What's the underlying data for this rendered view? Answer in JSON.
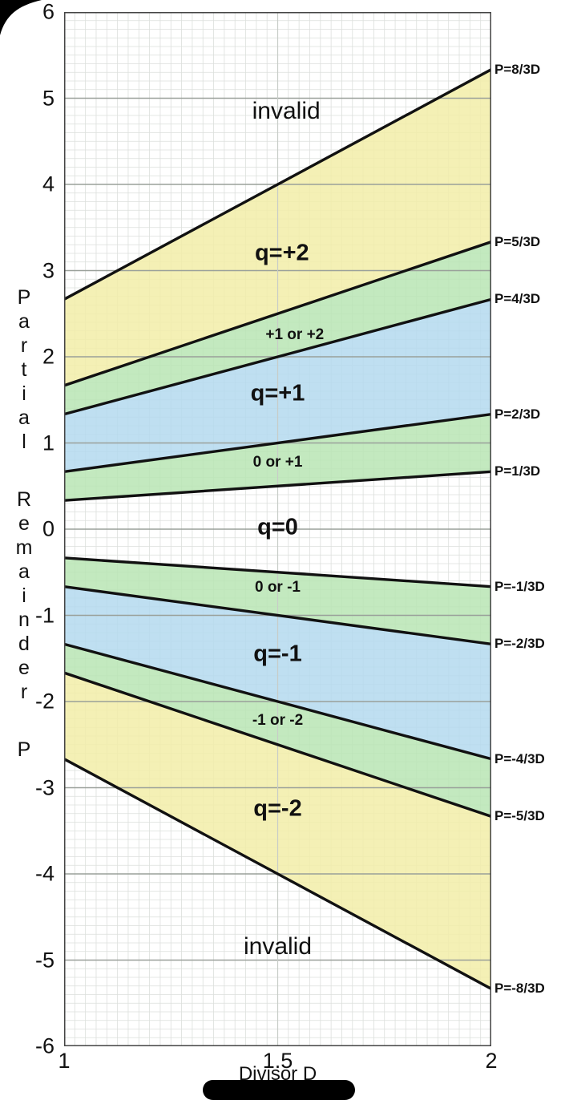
{
  "chart_data": {
    "type": "area",
    "title": "",
    "xlabel": "Divisor D",
    "ylabel": "Partial Remainder P",
    "xlim": [
      1,
      2
    ],
    "ylim": [
      -6,
      6
    ],
    "x_ticks": [
      "1",
      "1.5",
      "2"
    ],
    "y_ticks": [
      "6",
      "5",
      "4",
      "3",
      "2",
      "1",
      "0",
      "-1",
      "-2",
      "-3",
      "-4",
      "-5",
      "-6"
    ],
    "grid": "on",
    "boundary_lines": [
      {
        "label": "P=8/3D",
        "slope": 2.66667
      },
      {
        "label": "P=5/3D",
        "slope": 1.66667
      },
      {
        "label": "P=4/3D",
        "slope": 1.33333
      },
      {
        "label": "P=2/3D",
        "slope": 0.66667
      },
      {
        "label": "P=1/3D",
        "slope": 0.33333
      },
      {
        "label": "P=-1/3D",
        "slope": -0.33333
      },
      {
        "label": "P=-2/3D",
        "slope": -0.66667
      },
      {
        "label": "P=-4/3D",
        "slope": -1.33333
      },
      {
        "label": "P=-5/3D",
        "slope": -1.66667
      },
      {
        "label": "P=-8/3D",
        "slope": -2.66667
      }
    ],
    "regions": [
      {
        "label": "invalid",
        "fill": "none",
        "lower": {
          "slope": 2.66667
        },
        "upper": {
          "p": 6
        },
        "label_at": [
          1.52,
          4.85
        ],
        "style": "plain"
      },
      {
        "label": "q=+2",
        "fill": "yellow",
        "lower": {
          "slope": 1.66667
        },
        "upper": {
          "slope": 2.66667
        },
        "label_at": [
          1.51,
          3.2
        ],
        "style": "big-bold"
      },
      {
        "label": "+1 or +2",
        "fill": "green",
        "lower": {
          "slope": 1.33333
        },
        "upper": {
          "slope": 1.66667
        },
        "label_at": [
          1.54,
          2.25
        ],
        "style": "small-bold"
      },
      {
        "label": "q=+1",
        "fill": "blue",
        "lower": {
          "slope": 0.66667
        },
        "upper": {
          "slope": 1.33333
        },
        "label_at": [
          1.5,
          1.57
        ],
        "style": "big-bold"
      },
      {
        "label": "0 or +1",
        "fill": "green",
        "lower": {
          "slope": 0.33333
        },
        "upper": {
          "slope": 0.66667
        },
        "label_at": [
          1.5,
          0.77
        ],
        "style": "small-bold"
      },
      {
        "label": "q=0",
        "fill": "none",
        "lower": {
          "slope": -0.33333
        },
        "upper": {
          "slope": 0.33333
        },
        "label_at": [
          1.5,
          0.02
        ],
        "style": "big-bold"
      },
      {
        "label": "0 or -1",
        "fill": "green",
        "lower": {
          "slope": -0.66667
        },
        "upper": {
          "slope": -0.33333
        },
        "label_at": [
          1.5,
          -0.68
        ],
        "style": "small-bold"
      },
      {
        "label": "q=-1",
        "fill": "blue",
        "lower": {
          "slope": -1.33333
        },
        "upper": {
          "slope": -0.66667
        },
        "label_at": [
          1.5,
          -1.45
        ],
        "style": "big-bold"
      },
      {
        "label": "-1 or -2",
        "fill": "green",
        "lower": {
          "slope": -1.66667
        },
        "upper": {
          "slope": -1.33333
        },
        "label_at": [
          1.5,
          -2.22
        ],
        "style": "small-bold"
      },
      {
        "label": "q=-2",
        "fill": "yellow",
        "lower": {
          "slope": -2.66667
        },
        "upper": {
          "slope": -1.66667
        },
        "label_at": [
          1.5,
          -3.25
        ],
        "style": "big-bold"
      },
      {
        "label": "invalid",
        "fill": "none",
        "lower": {
          "p": -6
        },
        "upper": {
          "slope": -2.66667
        },
        "label_at": [
          1.5,
          -4.85
        ],
        "style": "plain"
      }
    ],
    "colors": {
      "yellow": "#f2eda8",
      "green": "#b9e5b4",
      "blue": "#b4d9ef",
      "line": "#111111",
      "grid_minor": "#dcdfdc",
      "grid_major": "#9aa09a",
      "frame": "#444444"
    }
  }
}
